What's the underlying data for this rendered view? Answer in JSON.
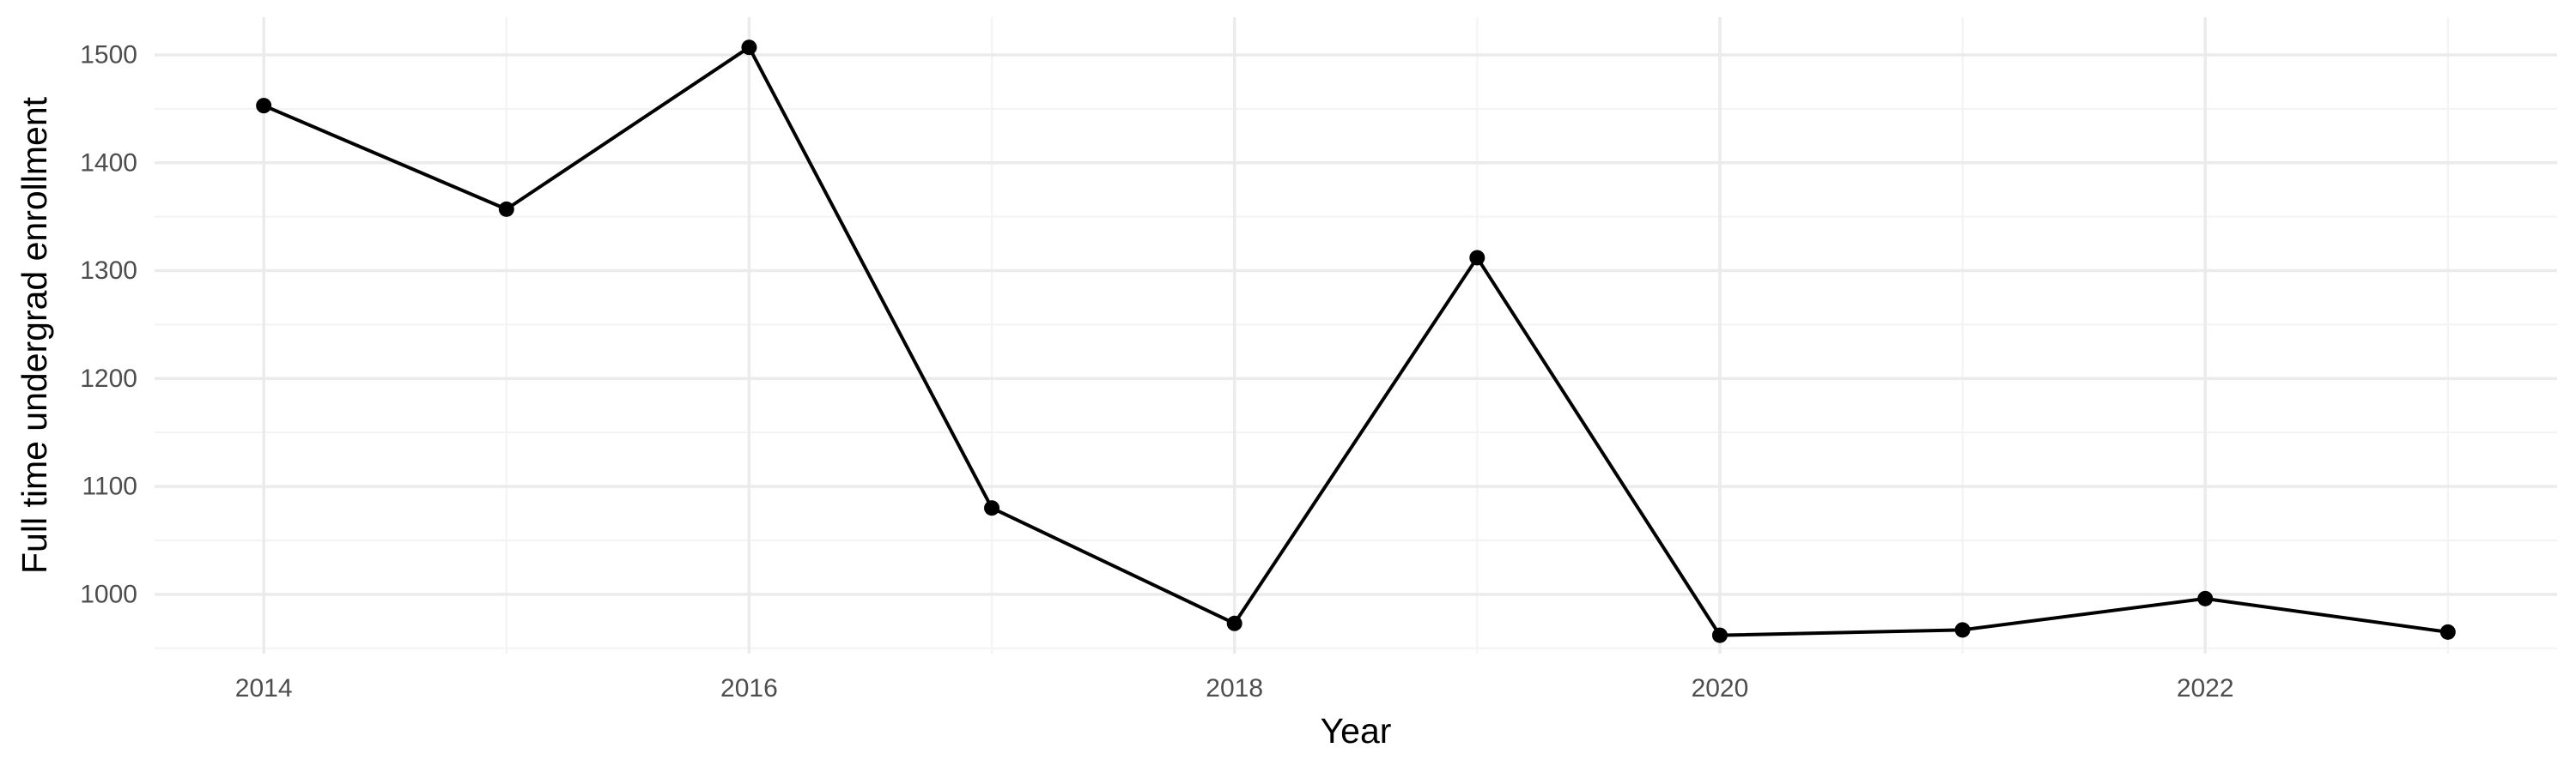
{
  "chart_data": {
    "type": "line",
    "title": "",
    "xlabel": "Year",
    "ylabel": "Full time undergrad enrollment",
    "x": [
      2014,
      2015,
      2016,
      2017,
      2018,
      2019,
      2020,
      2021,
      2022,
      2023
    ],
    "series": [
      {
        "values": [
          1453,
          1357,
          1507,
          1080,
          973,
          1312,
          962,
          967,
          996,
          965
        ]
      }
    ],
    "xlim": [
      2013.55,
      2023.45
    ],
    "ylim": [
      945,
      1535
    ],
    "x_major_ticks": [
      2014,
      2016,
      2018,
      2020,
      2022
    ],
    "x_minor_ticks": [
      2015,
      2017,
      2019,
      2021,
      2023
    ],
    "y_major_ticks": [
      1000,
      1100,
      1200,
      1300,
      1400,
      1500
    ],
    "y_minor_ticks": [
      950,
      1050,
      1150,
      1250,
      1350,
      1450
    ],
    "grid": true,
    "legend": "none",
    "colors": {
      "line": "#000000",
      "point": "#000000",
      "grid_major": "#ebebeb",
      "grid_minor": "#f3f3f3",
      "tick_label": "#4d4d4d",
      "axis_title": "#000000",
      "background": "#ffffff"
    }
  }
}
